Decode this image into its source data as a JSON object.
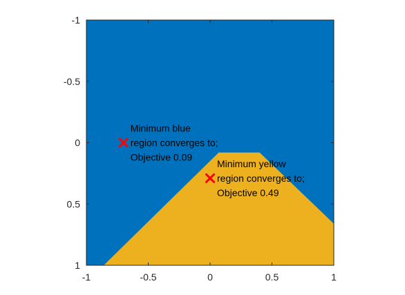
{
  "chart_data": {
    "type": "heatmap",
    "title": "",
    "xlabel": "",
    "ylabel": "",
    "xlim": [
      -1,
      1
    ],
    "ylim": [
      -1,
      1
    ],
    "y_direction": "reversed",
    "grid": false,
    "x_ticks": [
      {
        "value": -1,
        "label": "-1"
      },
      {
        "value": -0.5,
        "label": "-0.5"
      },
      {
        "value": 0,
        "label": "0"
      },
      {
        "value": 0.5,
        "label": "0.5"
      },
      {
        "value": 1,
        "label": "1"
      }
    ],
    "y_ticks": [
      {
        "value": -1,
        "label": "-1"
      },
      {
        "value": -0.5,
        "label": "-0.5"
      },
      {
        "value": 0,
        "label": "0"
      },
      {
        "value": 0.5,
        "label": "0.5"
      },
      {
        "value": 1,
        "label": "1"
      }
    ],
    "regions": [
      {
        "color": "#0072BD",
        "polygon": []
      },
      {
        "color": "#EDB120",
        "polygon": [
          [
            -0.86,
            1
          ],
          [
            0.07,
            0.08
          ],
          [
            0.4,
            0.08
          ],
          [
            1,
            0.66
          ],
          [
            1,
            1
          ]
        ]
      }
    ],
    "markers": [
      {
        "x": -0.7,
        "y": 0.0,
        "color": "#FF0000",
        "lines": [
          "Minimum blue",
          "region converges to;",
          "Objective 0.09"
        ]
      },
      {
        "x": 0.0,
        "y": 0.29,
        "color": "#FF0000",
        "lines": [
          "Minimum yellow",
          "region converges to;",
          "Objective 0.49"
        ]
      }
    ]
  }
}
